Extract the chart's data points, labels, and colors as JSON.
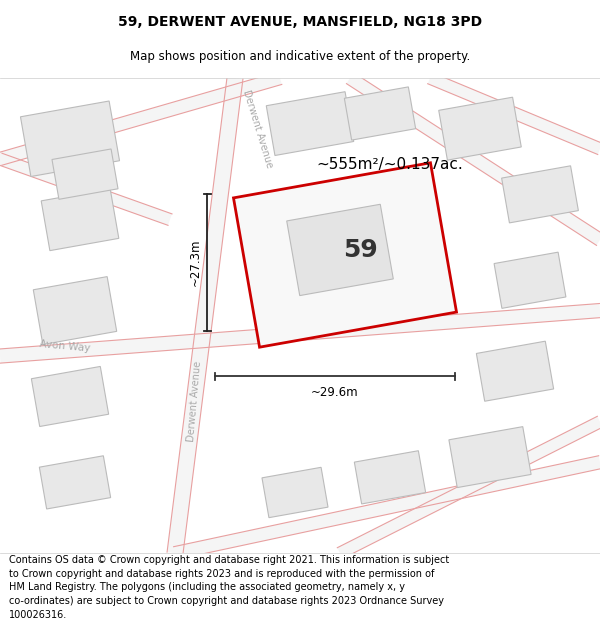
{
  "title": "59, DERWENT AVENUE, MANSFIELD, NG18 3PD",
  "subtitle": "Map shows position and indicative extent of the property.",
  "footer_line1": "Contains OS data © Crown copyright and database right 2021. This information is subject",
  "footer_line2": "to Crown copyright and database rights 2023 and is reproduced with the permission of",
  "footer_line3": "HM Land Registry. The polygons (including the associated geometry, namely x, y",
  "footer_line4": "co-ordinates) are subject to Crown copyright and database rights 2023 Ordnance Survey",
  "footer_line5": "100026316.",
  "title_fontsize": 10,
  "subtitle_fontsize": 8.5,
  "footer_fontsize": 7.0,
  "area_label": "~555m²/~0.137ac.",
  "number_label": "59",
  "dim_h": "~27.3m",
  "dim_w": "~29.6m",
  "road_color": "#f5c8c8",
  "road_edge_color": "#e8a0a0",
  "building_fill": "#e8e8e8",
  "building_outline": "#bbbbbb",
  "plot_fill": "#f8f8f8",
  "plot_outline": "#cc0000",
  "street_label_color": "#aaaaaa",
  "bg_color": "#ffffff",
  "map_bg": "#f8f8f8"
}
